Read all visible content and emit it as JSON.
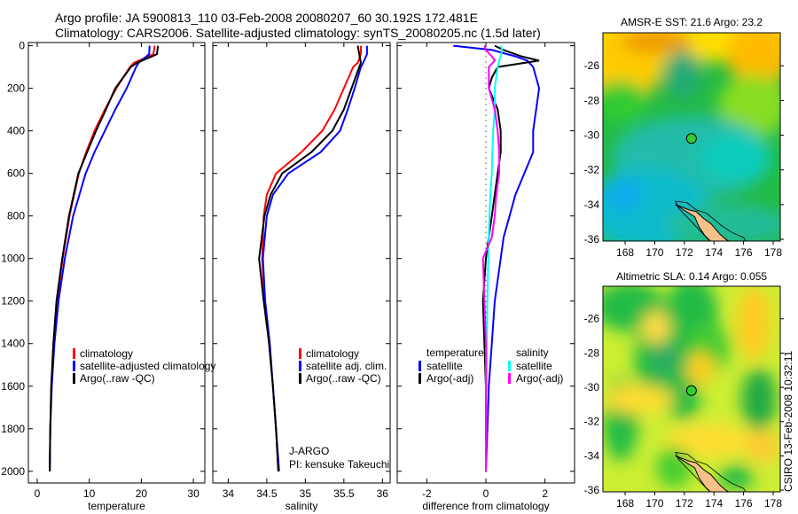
{
  "header": {
    "title_line1": "Argo profile: JA 5900813_110 03-Feb-2008 20080207_60 30.192S 172.481E",
    "title_line2": "Climatology: CARS2006. Satellite-adjusted climatology: synTS_20080205.nc (1.5d later)"
  },
  "stamp": "CSIRO 13-Feb-2008 10:32:11",
  "colors": {
    "climatology": "#ff0000",
    "satellite": "#0000ff",
    "argo": "#000000",
    "sal_satellite": "#00ffff",
    "sal_argo": "#ff00ff"
  },
  "chart_data": [
    {
      "type": "line",
      "xlabel": "temperature",
      "ylabel": "",
      "xlim": [
        -1.7,
        32.2
      ],
      "ylim": [
        2055,
        -15
      ],
      "xticks": [
        "0",
        "10",
        "20",
        "30"
      ],
      "xtick_values": [
        0,
        10,
        20,
        30
      ],
      "yticks": [
        "0",
        "200",
        "400",
        "600",
        "800",
        "1000",
        "1200",
        "1400",
        "1600",
        "1800",
        "2000"
      ],
      "ytick_values": [
        0,
        200,
        400,
        600,
        800,
        1000,
        1200,
        1400,
        1600,
        1800,
        2000
      ],
      "depth": [
        0,
        40,
        80,
        100,
        200,
        300,
        400,
        500,
        600,
        800,
        1000,
        1200,
        1400,
        1600,
        1800,
        2000
      ],
      "series": [
        {
          "name": "climatology",
          "color": "#ff0000",
          "values": [
            22.6,
            22.3,
            18.6,
            17.8,
            15.2,
            13.0,
            11.0,
            9.4,
            8.0,
            6.2,
            4.9,
            3.8,
            3.1,
            2.7,
            2.5,
            2.4
          ]
        },
        {
          "name": "satellite-adjusted climatology",
          "color": "#0000ff",
          "values": [
            21.6,
            21.5,
            19.5,
            19.0,
            17.2,
            15.0,
            13.0,
            11.0,
            9.3,
            6.9,
            5.3,
            4.1,
            3.3,
            2.8,
            2.5,
            2.4
          ]
        },
        {
          "name": "Argo(..raw -QC)",
          "color": "#000000",
          "values": [
            23.2,
            23.0,
            19.2,
            18.0,
            15.0,
            13.2,
            11.3,
            9.6,
            7.9,
            6.1,
            4.8,
            3.7,
            3.1,
            2.7,
            2.5,
            2.4
          ]
        }
      ],
      "legend": [
        "climatology",
        "satellite-adjusted climatology",
        "Argo(..raw -QC)"
      ]
    },
    {
      "type": "line",
      "xlabel": "salinity",
      "xlim": [
        33.8,
        36.1
      ],
      "ylim": [
        2055,
        -15
      ],
      "xticks": [
        "34",
        "34.5",
        "35",
        "35.5",
        "36"
      ],
      "xtick_values": [
        34,
        34.5,
        35,
        35.5,
        36
      ],
      "depth": [
        0,
        40,
        80,
        100,
        200,
        300,
        400,
        500,
        600,
        700,
        800,
        1000,
        1200,
        1400,
        1600,
        1800,
        2000
      ],
      "series": [
        {
          "name": "climatology",
          "color": "#ff0000",
          "values": [
            35.72,
            35.72,
            35.68,
            35.62,
            35.5,
            35.38,
            35.22,
            34.95,
            34.62,
            34.5,
            34.46,
            34.44,
            34.47,
            34.53,
            34.58,
            34.62,
            34.65
          ]
        },
        {
          "name": "satellite adj. clim.",
          "color": "#0000ff",
          "values": [
            35.8,
            35.8,
            35.75,
            35.72,
            35.64,
            35.55,
            35.45,
            35.2,
            34.78,
            34.58,
            34.5,
            34.45,
            34.48,
            34.54,
            34.58,
            34.62,
            34.66
          ]
        },
        {
          "name": "Argo(..raw -QC)",
          "color": "#000000",
          "values": [
            35.68,
            35.7,
            35.72,
            35.7,
            35.6,
            35.5,
            35.35,
            35.08,
            34.7,
            34.55,
            34.47,
            34.4,
            34.46,
            34.53,
            34.58,
            34.62,
            34.65
          ]
        }
      ],
      "legend": [
        "climatology",
        "satellite adj. clim.",
        "Argo(..raw -QC)"
      ],
      "annotation": [
        "J-ARGO",
        "PI: kensuke Takeuchi"
      ]
    },
    {
      "type": "line",
      "xlabel": "difference from climatology",
      "xlim": [
        -3,
        3
      ],
      "ylim": [
        2055,
        -15
      ],
      "xticks": [
        "-2",
        "0",
        "2"
      ],
      "xtick_values": [
        -2,
        0,
        2
      ],
      "depth": [
        0,
        20,
        50,
        70,
        100,
        150,
        200,
        300,
        400,
        500,
        600,
        700,
        800,
        900,
        1000,
        1200,
        1400,
        1600,
        1800,
        2000
      ],
      "series": [
        {
          "name": "temperature satellite",
          "color": "#0000ff",
          "values": [
            -1.1,
            0.2,
            1.0,
            1.4,
            1.6,
            1.7,
            1.8,
            1.7,
            1.6,
            1.6,
            1.3,
            1.0,
            0.8,
            0.6,
            0.5,
            0.3,
            0.2,
            0.1,
            0.05,
            0.0
          ]
        },
        {
          "name": "temperature Argo(-adj)",
          "color": "#000000",
          "values": [
            0.3,
            0.6,
            1.2,
            1.8,
            0.4,
            0.2,
            0.1,
            0.4,
            0.5,
            0.5,
            0.4,
            0.3,
            0.2,
            0.1,
            0.0,
            -0.1,
            -0.05,
            0.0,
            0.0,
            0.0
          ]
        },
        {
          "name": "salinity satellite",
          "color": "#00ffff",
          "values": [
            0.5,
            0.55,
            0.5,
            0.45,
            0.4,
            0.35,
            0.3,
            0.3,
            0.25,
            0.22,
            0.2,
            0.15,
            0.12,
            0.1,
            0.08,
            0.05,
            0.03,
            0.02,
            0.01,
            0.0
          ]
        },
        {
          "name": "salinity Argo(-adj)",
          "color": "#ff00ff",
          "values": [
            -0.05,
            0.0,
            0.2,
            0.3,
            0.1,
            0.1,
            0.1,
            0.3,
            0.4,
            0.45,
            0.45,
            0.35,
            0.3,
            0.2,
            -0.1,
            -0.05,
            0.0,
            0.0,
            0.0,
            0.0
          ]
        }
      ],
      "legend_headers": [
        "temperature",
        "salinity"
      ],
      "legend": [
        "satellite",
        "Argo(-adj)",
        "satellite",
        "Argo(-adj)"
      ]
    }
  ],
  "maps": [
    {
      "title": "AMSR-E SST: 21.6 Argo: 23.2",
      "lon_ticks": [
        "168",
        "170",
        "172",
        "174",
        "176",
        "178"
      ],
      "lat_ticks": [
        "-26",
        "-28",
        "-30",
        "-32",
        "-34",
        "-36"
      ],
      "float_lon": 172.481,
      "float_lat": -30.192
    },
    {
      "title": "Altimetric SLA: 0.14 Argo: 0.055",
      "lon_ticks": [
        "168",
        "170",
        "172",
        "174",
        "176",
        "178"
      ],
      "lat_ticks": [
        "-26",
        "-28",
        "-30",
        "-32",
        "-34",
        "-36"
      ],
      "float_lon": 172.481,
      "float_lat": -30.192
    }
  ]
}
